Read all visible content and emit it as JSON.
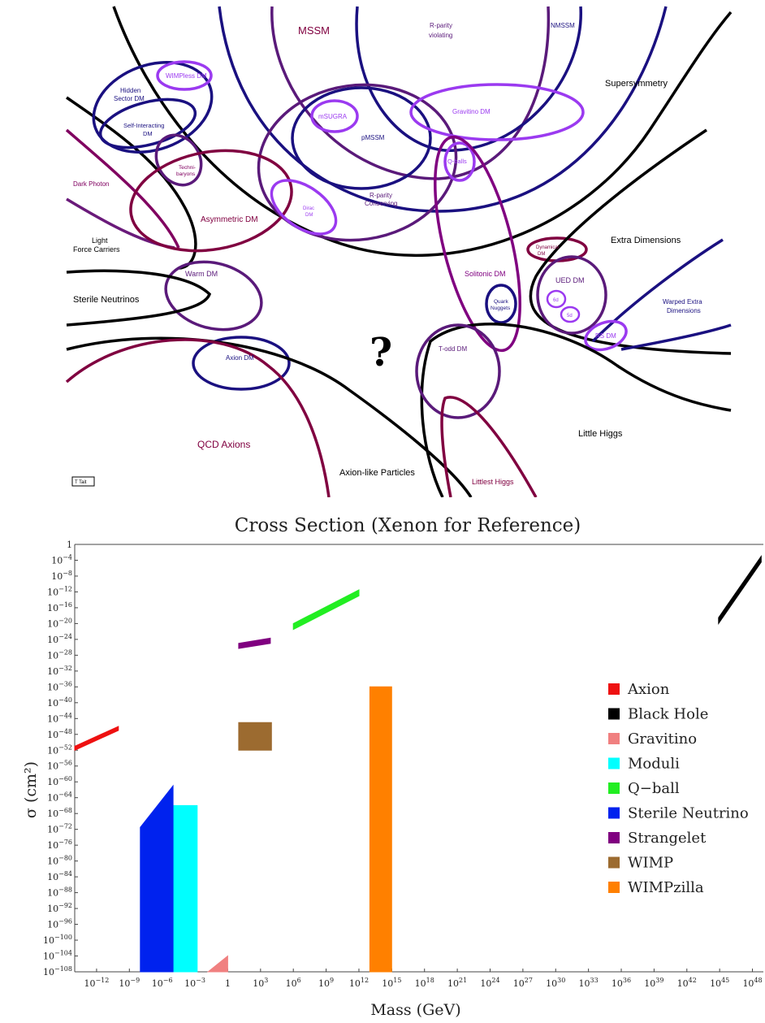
{
  "diagram": {
    "question_mark": "?",
    "credit": "T Tait",
    "labels": {
      "mssm": "MSSM",
      "rparity_violating_1": "R-parity",
      "rparity_violating_2": "violating",
      "nmssm": "NMSSM",
      "supersymmetry": "Supersymmetry",
      "wimpless": "WIMPless DM",
      "hidden_1": "Hidden",
      "hidden_2": "Sector DM",
      "self_int_1": "Self-Interacting",
      "self_int_2": "DM",
      "techni_1": "Techni-",
      "techni_2": "baryons",
      "msugra": "mSUGRA",
      "pmssm": "pMSSM",
      "gravitino": "Gravitino DM",
      "qballs": "Q-balls",
      "dark_photon": "Dark Photon",
      "asymmetric": "Asymmetric DM",
      "dirac_1": "Dirac",
      "dirac_2": "DM",
      "rparity_cons_1": "R-parity",
      "rparity_cons_2": "Conserving",
      "light_fc_1": "Light",
      "light_fc_2": "Force Carriers",
      "dynamical_1": "Dynamical",
      "dynamical_2": "DM",
      "extra_dim": "Extra Dimensions",
      "warm": "Warm DM",
      "solitonic": "Solitonic DM",
      "ued": "UED DM",
      "six_d": "6d",
      "five_d": "5d",
      "sterile": "Sterile Neutrinos",
      "quark_1": "Quark",
      "quark_2": "Nuggets",
      "warped_1": "Warped Extra",
      "warped_2": "Dimensions",
      "rs": "RS DM",
      "axion_dm": "Axion DM",
      "todd": "T-odd DM",
      "little_higgs": "Little Higgs",
      "qcd_axions": "QCD Axions",
      "alp": "Axion-like Particles",
      "littlest": "Littlest Higgs"
    }
  },
  "chart_data": {
    "type": "bar",
    "title": "Cross Section (Xenon for Reference)",
    "xlabel": "Mass (GeV)",
    "ylabel": "σ (cm²)",
    "x_scale": "log10",
    "y_scale": "log10",
    "xlim_log10": [
      -14,
      49
    ],
    "ylim_log10": [
      -108,
      0
    ],
    "x_ticks_log10": [
      -12,
      -9,
      -6,
      -3,
      0,
      3,
      6,
      9,
      12,
      15,
      18,
      21,
      24,
      27,
      30,
      33,
      36,
      39,
      42,
      45,
      48
    ],
    "y_ticks_log10": [
      0,
      -4,
      -8,
      -12,
      -16,
      -20,
      -24,
      -28,
      -32,
      -36,
      -40,
      -44,
      -48,
      -52,
      -56,
      -60,
      -64,
      -68,
      -72,
      -76,
      -80,
      -84,
      -88,
      -92,
      -96,
      -100,
      -104,
      -108
    ],
    "legend_position": "right",
    "series": [
      {
        "name": "Axion",
        "color": "#ee1111",
        "shape": "band",
        "x_log10": [
          -14,
          -10
        ],
        "y_top_log10": [
          -51,
          -46
        ],
        "y_bottom_log10": [
          -52,
          -47
        ]
      },
      {
        "name": "Black Hole",
        "color": "#000000",
        "shape": "band",
        "x_log10": [
          44.9,
          48.8
        ],
        "y_top_log10": [
          -18.5,
          -3
        ],
        "y_bottom_log10": [
          -20,
          -4.5
        ]
      },
      {
        "name": "Gravitino",
        "color": "#f08080",
        "shape": "band",
        "x_log10": [
          -1.8,
          0
        ],
        "y_top_log10": [
          -108,
          -104
        ],
        "y_bottom_log10": [
          -108,
          -108
        ]
      },
      {
        "name": "Moduli",
        "color": "#00ffff",
        "shape": "band",
        "x_log10": [
          -5.9,
          -2.8
        ],
        "y_top_log10": [
          -66,
          -66
        ],
        "y_bottom_log10": [
          -108,
          -108
        ]
      },
      {
        "name": "Q−ball",
        "color": "#22ee22",
        "shape": "band",
        "x_log10": [
          6,
          12
        ],
        "y_top_log10": [
          -20,
          -11.5
        ],
        "y_bottom_log10": [
          -21.5,
          -13
        ]
      },
      {
        "name": "Sterile Neutrino",
        "color": "#0022ee",
        "shape": "band",
        "x_log10": [
          -8,
          -5
        ],
        "y_top_log10": [
          -71.5,
          -61
        ],
        "y_bottom_log10": [
          -108,
          -108
        ]
      },
      {
        "name": "Strangelet",
        "color": "#800080",
        "shape": "band",
        "x_log10": [
          1,
          3.9
        ],
        "y_top_log10": [
          -25,
          -23.7
        ],
        "y_bottom_log10": [
          -26.3,
          -25
        ]
      },
      {
        "name": "WIMP",
        "color": "#9c6b30",
        "shape": "band",
        "x_log10": [
          1,
          4
        ],
        "y_top_log10": [
          -45,
          -45
        ],
        "y_bottom_log10": [
          -52,
          -52
        ]
      },
      {
        "name": "WIMPzilla",
        "color": "#ff8000",
        "shape": "band",
        "x_log10": [
          13,
          15
        ],
        "y_top_log10": [
          -36,
          -36
        ],
        "y_bottom_log10": [
          -108,
          -108
        ]
      }
    ]
  }
}
